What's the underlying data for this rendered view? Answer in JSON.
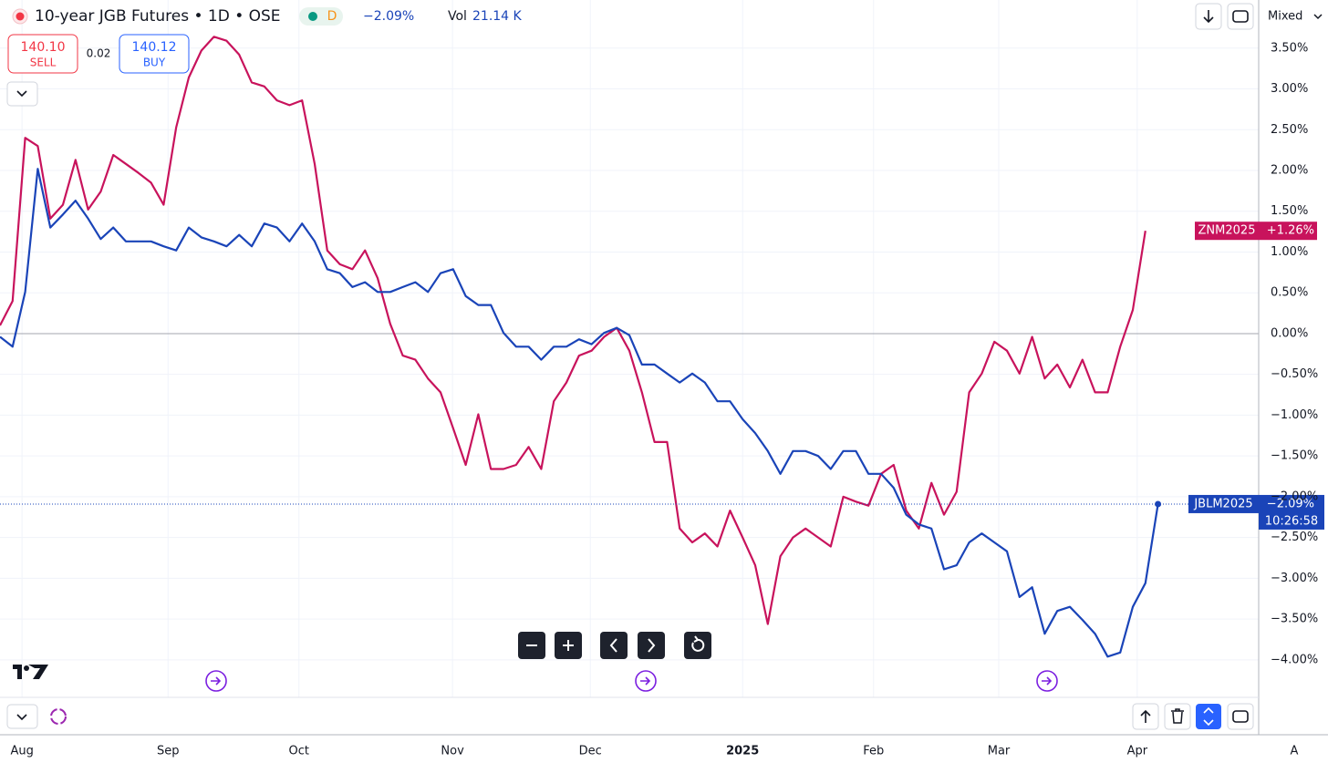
{
  "header": {
    "title": "10-year JGB Futures • 1D • OSE",
    "badge": "D",
    "change": "−2.09%",
    "vol_label": "Vol",
    "vol_value": "21.14 K",
    "sell_price": "140.10",
    "sell_label": "SELL",
    "spread": "0.02",
    "buy_price": "140.12",
    "buy_label": "BUY",
    "scale_mode": "Mixed",
    "auto_label": "A"
  },
  "chart_data": {
    "type": "line",
    "x": [
      0,
      2,
      4,
      6,
      8,
      10,
      12,
      14,
      16,
      18,
      20,
      22,
      24,
      26,
      28,
      30,
      32,
      34,
      36,
      38,
      40,
      42,
      44,
      46,
      48,
      50,
      52,
      54,
      56,
      58,
      60,
      62,
      64,
      66,
      68,
      70,
      72,
      74,
      76,
      78,
      80,
      82,
      84,
      86,
      88,
      90,
      92,
      94,
      96,
      98,
      100,
      102,
      104,
      106,
      108,
      110,
      112,
      114,
      116,
      118,
      120,
      122,
      124,
      126,
      128,
      130,
      132,
      134,
      136,
      138,
      140,
      142,
      144,
      146,
      148,
      150,
      152,
      154,
      156,
      158,
      160,
      162,
      164,
      166,
      168,
      170,
      172,
      174,
      176,
      178,
      180,
      182,
      184
    ],
    "xlim": [
      0,
      200
    ],
    "xticks": [
      {
        "value": 3.5,
        "label": "Aug"
      },
      {
        "value": 26.7,
        "label": "Sep"
      },
      {
        "value": 47.5,
        "label": "Oct"
      },
      {
        "value": 71.9,
        "label": "Nov"
      },
      {
        "value": 93.8,
        "label": "Dec"
      },
      {
        "value": 118,
        "label": "2025"
      },
      {
        "value": 138.8,
        "label": "Feb"
      },
      {
        "value": 158.7,
        "label": "Mar"
      },
      {
        "value": 180.7,
        "label": "Apr"
      }
    ],
    "ylim": [
      -4.46,
      4.09
    ],
    "yticks": [
      {
        "value": -4,
        "label": "−4.00%"
      },
      {
        "value": -3.5,
        "label": "−3.50%"
      },
      {
        "value": -3,
        "label": "−3.00%"
      },
      {
        "value": -2.5,
        "label": "−2.50%"
      },
      {
        "value": -2,
        "label": "−2.00%"
      },
      {
        "value": -1.5,
        "label": "−1.50%"
      },
      {
        "value": -1,
        "label": "−1.00%"
      },
      {
        "value": -0.5,
        "label": "−0.50%"
      },
      {
        "value": 0,
        "label": "0.00%"
      },
      {
        "value": 0.5,
        "label": "0.50%"
      },
      {
        "value": 1,
        "label": "1.00%"
      },
      {
        "value": 1.5,
        "label": "1.50%"
      },
      {
        "value": 2,
        "label": "2.00%"
      },
      {
        "value": 2.5,
        "label": "2.50%"
      },
      {
        "value": 3,
        "label": "3.00%"
      },
      {
        "value": 3.5,
        "label": "3.50%"
      }
    ],
    "grid": true,
    "series": [
      {
        "name": "ZNM2025",
        "color": "#c8135c",
        "last_label": "+1.26%",
        "values": [
          0.1,
          0.4,
          2.4,
          2.3,
          1.41,
          1.58,
          2.13,
          1.52,
          1.74,
          2.19,
          2.08,
          1.97,
          1.85,
          1.58,
          2.53,
          3.14,
          3.47,
          3.64,
          3.59,
          3.42,
          3.08,
          3.03,
          2.86,
          2.8,
          2.86,
          2.08,
          1.02,
          0.85,
          0.79,
          1.02,
          0.68,
          0.12,
          -0.27,
          -0.32,
          -0.55,
          -0.72,
          -1.16,
          -1.61,
          -0.99,
          -1.66,
          -1.66,
          -1.61,
          -1.39,
          -1.66,
          -0.83,
          -0.6,
          -0.27,
          -0.21,
          -0.04,
          0.07,
          -0.21,
          -0.72,
          -1.33,
          -1.33,
          -2.39,
          -2.56,
          -2.45,
          -2.61,
          -2.17,
          -2.5,
          -2.84,
          -3.56,
          -2.73,
          -2.5,
          -2.39,
          -2.5,
          -2.61,
          -2.0,
          -2.06,
          -2.11,
          -1.72,
          -1.61,
          -2.17,
          -2.39,
          -1.83,
          -2.22,
          -1.94,
          -0.72,
          -0.49,
          -0.1,
          -0.21,
          -0.49,
          -0.04,
          -0.55,
          -0.38,
          -0.66,
          -0.32,
          -0.72,
          -0.72,
          -0.16,
          0.29,
          1.26,
          null
        ]
      },
      {
        "name": "JBLM2025",
        "color": "#1a44b8",
        "last_label": "−2.09%",
        "time_label": "10:26:58",
        "values": [
          -0.04,
          -0.16,
          0.51,
          2.02,
          1.3,
          1.46,
          1.63,
          1.41,
          1.16,
          1.3,
          1.13,
          1.13,
          1.13,
          1.07,
          1.02,
          1.3,
          1.18,
          1.13,
          1.07,
          1.21,
          1.07,
          1.35,
          1.3,
          1.13,
          1.35,
          1.13,
          0.79,
          0.74,
          0.57,
          0.63,
          0.51,
          0.51,
          0.57,
          0.63,
          0.51,
          0.74,
          0.79,
          0.46,
          0.35,
          0.35,
          0.01,
          -0.16,
          -0.16,
          -0.32,
          -0.16,
          -0.16,
          -0.07,
          -0.13,
          0.01,
          0.07,
          -0.02,
          -0.38,
          -0.38,
          -0.49,
          -0.6,
          -0.49,
          -0.6,
          -0.83,
          -0.83,
          -1.05,
          -1.22,
          -1.44,
          -1.72,
          -1.44,
          -1.44,
          -1.5,
          -1.66,
          -1.44,
          -1.44,
          -1.72,
          -1.72,
          -1.89,
          -2.22,
          -2.34,
          -2.39,
          -2.89,
          -2.84,
          -2.56,
          -2.45,
          -2.56,
          -2.67,
          -3.23,
          -3.11,
          -3.68,
          -3.4,
          -3.35,
          -3.51,
          -3.68,
          -3.96,
          -3.91,
          -3.35,
          -3.06,
          -2.09
        ]
      }
    ]
  }
}
